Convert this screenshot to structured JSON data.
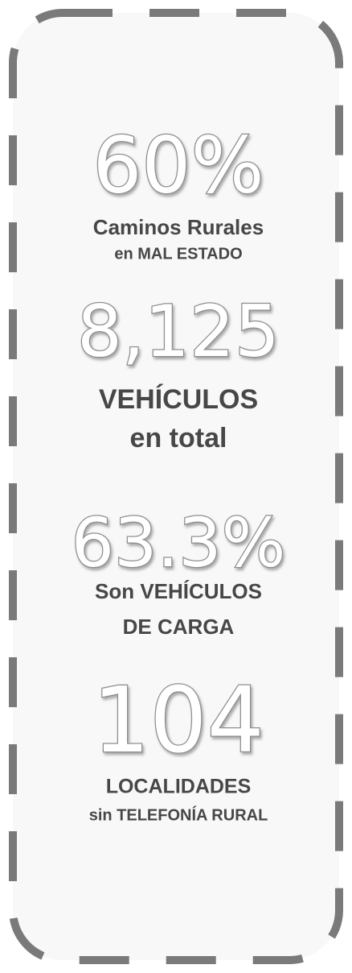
{
  "stats": [
    {
      "value": "60%",
      "lines": [
        "Caminos Rurales",
        "en MAL ESTADO"
      ]
    },
    {
      "value": "8,125",
      "lines": [
        "VEHÍCULOS",
        "en total"
      ]
    },
    {
      "value": "63.3%",
      "lines": [
        "Son VEHÍCULOS",
        "DE CARGA"
      ]
    },
    {
      "value": "104",
      "lines": [
        "LOCALIDADES",
        "sin TELEFONÍA RURAL"
      ]
    }
  ]
}
